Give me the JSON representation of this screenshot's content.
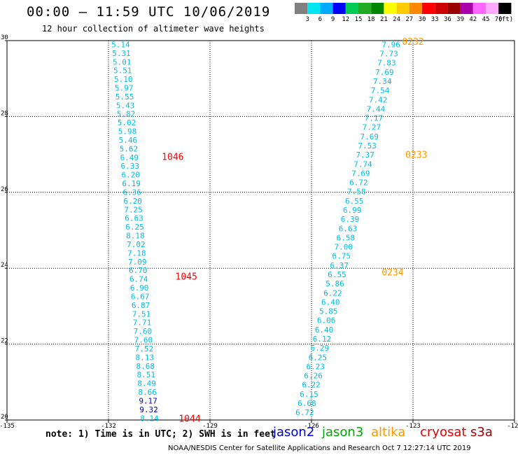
{
  "header": {
    "title": "00:00 – 11:59 UTC 10/06/2019",
    "subtitle": "12 hour collection of altimeter wave heights"
  },
  "colorbar": {
    "colors": [
      "#808080",
      "#00e6f0",
      "#00aaff",
      "#0000ff",
      "#00cc55",
      "#22aa22",
      "#008800",
      "#ffff00",
      "#ffcc00",
      "#ff8800",
      "#ff0000",
      "#cc0000",
      "#990000",
      "#aa00aa",
      "#ff66ff",
      "#ffaaff",
      "#000000"
    ],
    "labels": [
      "3",
      "6",
      "9",
      "12",
      "15",
      "18",
      "21",
      "24",
      "27",
      "30",
      "33",
      "36",
      "39",
      "42",
      "45",
      "70",
      "(ft)"
    ]
  },
  "chart_data": {
    "type": "scatter",
    "x_ticks": [
      "-135",
      "-132",
      "-129",
      "-126",
      "-123",
      "-120"
    ],
    "y_ticks": [
      "20",
      "22",
      "24",
      "26",
      "28",
      "30"
    ],
    "xlim": [
      -135,
      -120
    ],
    "ylim": [
      20,
      30
    ],
    "grid": true,
    "swh_colors": {
      "cyan": "#00bde6",
      "blue": "#0000cc"
    },
    "tracks": [
      {
        "lon_start": -131.64,
        "lon_end": -130.79,
        "values": [
          {
            "v": "5.14",
            "c": "cyan"
          },
          {
            "v": "5.31",
            "c": "cyan"
          },
          {
            "v": "5.01",
            "c": "cyan"
          },
          {
            "v": "5.51",
            "c": "cyan"
          },
          {
            "v": "5.10",
            "c": "cyan"
          },
          {
            "v": "5.97",
            "c": "cyan"
          },
          {
            "v": "5.55",
            "c": "cyan"
          },
          {
            "v": "5.43",
            "c": "cyan"
          },
          {
            "v": "5.82",
            "c": "cyan"
          },
          {
            "v": "5.02",
            "c": "cyan"
          },
          {
            "v": "5.98",
            "c": "cyan"
          },
          {
            "v": "5.46",
            "c": "cyan"
          },
          {
            "v": "5.62",
            "c": "cyan"
          },
          {
            "v": "6.49",
            "c": "cyan"
          },
          {
            "v": "6.33",
            "c": "cyan"
          },
          {
            "v": "6.20",
            "c": "cyan"
          },
          {
            "v": "6.19",
            "c": "cyan"
          },
          {
            "v": "6.36",
            "c": "cyan"
          },
          {
            "v": "6.20",
            "c": "cyan"
          },
          {
            "v": "7.25",
            "c": "cyan"
          },
          {
            "v": "6.63",
            "c": "cyan"
          },
          {
            "v": "6.25",
            "c": "cyan"
          },
          {
            "v": "8.18",
            "c": "cyan"
          },
          {
            "v": "7.02",
            "c": "cyan"
          },
          {
            "v": "7.18",
            "c": "cyan"
          },
          {
            "v": "7.09",
            "c": "cyan"
          },
          {
            "v": "6.70",
            "c": "cyan"
          },
          {
            "v": "6.74",
            "c": "cyan"
          },
          {
            "v": "6.90",
            "c": "cyan"
          },
          {
            "v": "6.67",
            "c": "cyan"
          },
          {
            "v": "6.87",
            "c": "cyan"
          },
          {
            "v": "7.51",
            "c": "cyan"
          },
          {
            "v": "7.71",
            "c": "cyan"
          },
          {
            "v": "7.60",
            "c": "cyan"
          },
          {
            "v": "7.60",
            "c": "cyan"
          },
          {
            "v": "7.52",
            "c": "cyan"
          },
          {
            "v": "8.13",
            "c": "cyan"
          },
          {
            "v": "8.68",
            "c": "cyan"
          },
          {
            "v": "8.51",
            "c": "cyan"
          },
          {
            "v": "8.49",
            "c": "cyan"
          },
          {
            "v": "8.66",
            "c": "cyan"
          },
          {
            "v": "9.17",
            "c": "blue"
          },
          {
            "v": "9.32",
            "c": "blue"
          },
          {
            "v": "8.14",
            "c": "cyan"
          }
        ]
      },
      {
        "lon_start": -123.65,
        "lon_end": -126.2,
        "values": [
          {
            "v": "7.96",
            "c": "cyan"
          },
          {
            "v": "7.73",
            "c": "cyan"
          },
          {
            "v": "7.83",
            "c": "cyan"
          },
          {
            "v": "7.69",
            "c": "cyan"
          },
          {
            "v": "7.34",
            "c": "cyan"
          },
          {
            "v": "7.54",
            "c": "cyan"
          },
          {
            "v": "7.42",
            "c": "cyan"
          },
          {
            "v": "7.44",
            "c": "cyan"
          },
          {
            "v": "7.17",
            "c": "cyan"
          },
          {
            "v": "7.27",
            "c": "cyan"
          },
          {
            "v": "7.69",
            "c": "cyan"
          },
          {
            "v": "7.53",
            "c": "cyan"
          },
          {
            "v": "7.37",
            "c": "cyan"
          },
          {
            "v": "7.74",
            "c": "cyan"
          },
          {
            "v": "7.69",
            "c": "cyan"
          },
          {
            "v": "6.72",
            "c": "cyan"
          },
          {
            "v": "7.58",
            "c": "cyan"
          },
          {
            "v": "6.55",
            "c": "cyan"
          },
          {
            "v": "6.99",
            "c": "cyan"
          },
          {
            "v": "6.39",
            "c": "cyan"
          },
          {
            "v": "6.63",
            "c": "cyan"
          },
          {
            "v": "6.58",
            "c": "cyan"
          },
          {
            "v": "7.00",
            "c": "cyan"
          },
          {
            "v": "6.75",
            "c": "cyan"
          },
          {
            "v": "6.37",
            "c": "cyan"
          },
          {
            "v": "6.55",
            "c": "cyan"
          },
          {
            "v": "5.86",
            "c": "cyan"
          },
          {
            "v": "6.22",
            "c": "cyan"
          },
          {
            "v": "6.40",
            "c": "cyan"
          },
          {
            "v": "5.85",
            "c": "cyan"
          },
          {
            "v": "6.06",
            "c": "cyan"
          },
          {
            "v": "6.40",
            "c": "cyan"
          },
          {
            "v": "6.12",
            "c": "cyan"
          },
          {
            "v": "6.29",
            "c": "cyan"
          },
          {
            "v": "6.25",
            "c": "cyan"
          },
          {
            "v": "6.23",
            "c": "cyan"
          },
          {
            "v": "6.26",
            "c": "cyan"
          },
          {
            "v": "6.22",
            "c": "cyan"
          },
          {
            "v": "6.15",
            "c": "cyan"
          },
          {
            "v": "6.68",
            "c": "cyan"
          },
          {
            "v": "6.72",
            "c": "cyan"
          }
        ]
      }
    ],
    "time_labels": [
      {
        "text": "0232",
        "color": "#ff9900",
        "lon": -123.0,
        "lat": 29.98
      },
      {
        "text": "0233",
        "color": "#ff9900",
        "lon": -122.9,
        "lat": 27.0
      },
      {
        "text": "0234",
        "color": "#ff9900",
        "lon": -123.6,
        "lat": 23.9
      },
      {
        "text": "1046",
        "color": "#ff0000",
        "lon": -130.1,
        "lat": 26.95
      },
      {
        "text": "1045",
        "color": "#ff0000",
        "lon": -129.7,
        "lat": 23.79
      },
      {
        "text": "1044",
        "color": "#ff0000",
        "lon": -129.6,
        "lat": 20.05
      }
    ]
  },
  "footer": {
    "note": "note: 1) Time is in UTC; 2) SWH is in feet",
    "satellites": [
      {
        "name": "jason2",
        "color": "#0000dd"
      },
      {
        "name": "jason3",
        "color": "#00aa00"
      },
      {
        "name": "altika",
        "color": "#ff9900"
      },
      {
        "name": "cryosat",
        "color": "#ee0000"
      },
      {
        "name": "s3a",
        "color": "#aa0000"
      }
    ],
    "credit": "NOAA/NESDIS Center for Satellite Applications and Research    Oct  7 12:27:14 UTC 2019"
  }
}
